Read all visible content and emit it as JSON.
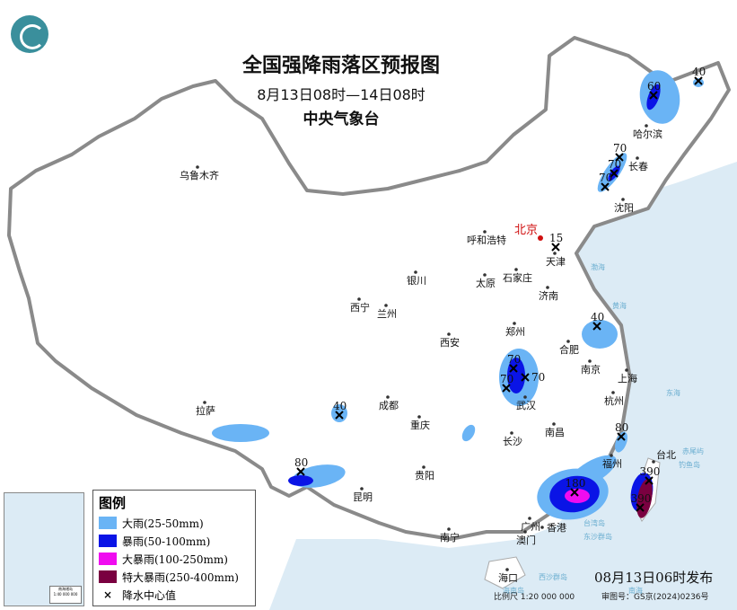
{
  "header": {
    "title": "全国强降雨落区预报图",
    "subtitle": "8月13日08时—14日08时",
    "issuer": "中央气象台"
  },
  "legend": {
    "title": "图例",
    "items": [
      {
        "label": "大雨(25-50mm)",
        "color": "#6ab4f5"
      },
      {
        "label": "暴雨(50-100mm)",
        "color": "#0a14e6"
      },
      {
        "label": "大暴雨(100-250mm)",
        "color": "#f00cf0"
      },
      {
        "label": "特大暴雨(250-400mm)",
        "color": "#7a0040"
      }
    ],
    "center_label": "降水中心值"
  },
  "footer": {
    "issued": "08月13日06时发布",
    "scale": "比例尺 1:20 000 000",
    "review": "审图号：GS京(2024)0236号"
  },
  "inset": {
    "title": "南海诸岛",
    "scale": "1:40 000 000"
  },
  "capital": "北京",
  "cities": [
    "乌鲁木齐",
    "哈尔滨",
    "长春",
    "沈阳",
    "呼和浩特",
    "天津",
    "银川",
    "太原",
    "石家庄",
    "济南",
    "西宁",
    "兰州",
    "郑州",
    "西安",
    "合肥",
    "南京",
    "上海",
    "武汉",
    "杭州",
    "成都",
    "重庆",
    "拉萨",
    "长沙",
    "南昌",
    "福州",
    "台北",
    "贵阳",
    "昆明",
    "南宁",
    "广州",
    "澳门",
    "香港",
    "海口"
  ],
  "rain_centers": [
    "60",
    "40",
    "70",
    "70",
    "70",
    "15",
    "40",
    "70",
    "70",
    "70",
    "40",
    "80",
    "80",
    "180",
    "390",
    "390"
  ],
  "sea_labels": [
    "渤海",
    "黄海",
    "东海",
    "台湾岛",
    "钓鱼岛",
    "赤尾屿",
    "东沙群岛",
    "西沙群岛",
    "海南岛",
    "南海"
  ],
  "colors": {
    "sea": "#dcebf5",
    "land": "#ffffff",
    "border": "#8a8a8a",
    "capital": "#d01010"
  }
}
